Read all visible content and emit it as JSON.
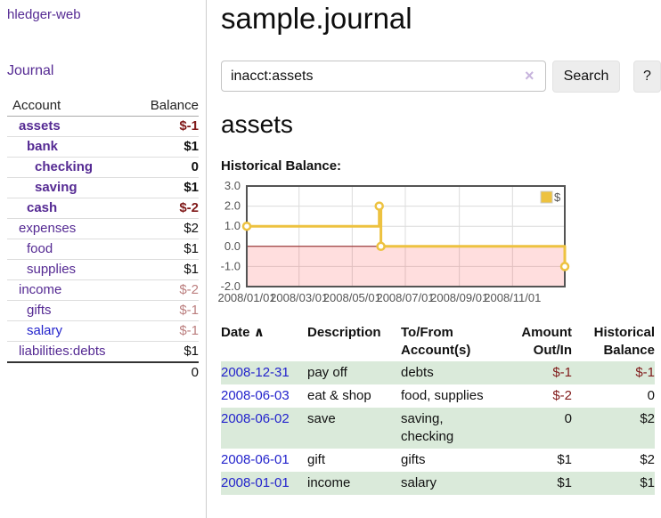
{
  "sidebar": {
    "brand": "hledger-web",
    "nav_journal": "Journal",
    "accounts_table": {
      "headers": {
        "account": "Account",
        "balance": "Balance"
      },
      "rows": [
        {
          "name": "assets",
          "indent": 1,
          "balance": "$-1",
          "bold": true,
          "neg": "strong"
        },
        {
          "name": "bank",
          "indent": 2,
          "balance": "$1",
          "bold": true
        },
        {
          "name": "checking",
          "indent": 3,
          "balance": "0",
          "bold": true
        },
        {
          "name": "saving",
          "indent": 3,
          "balance": "$1",
          "bold": true
        },
        {
          "name": "cash",
          "indent": 2,
          "balance": "$-2",
          "bold": true,
          "neg": "strong"
        },
        {
          "name": "expenses",
          "indent": 1,
          "balance": "$2"
        },
        {
          "name": "food",
          "indent": 2,
          "balance": "$1"
        },
        {
          "name": "supplies",
          "indent": 2,
          "balance": "$1"
        },
        {
          "name": "income",
          "indent": 1,
          "balance": "$-2",
          "neg": "faded"
        },
        {
          "name": "gifts",
          "indent": 2,
          "balance": "$-1",
          "neg": "faded"
        },
        {
          "name": "salary",
          "indent": 2,
          "balance": "$-1",
          "neg": "faded",
          "link": "blue"
        },
        {
          "name": "liabilities:debts",
          "indent": 1,
          "balance": "$1"
        }
      ],
      "total": "0"
    }
  },
  "header": {
    "title": "sample.journal"
  },
  "search": {
    "value": "inacct:assets",
    "clear_icon": "×",
    "button_label": "Search",
    "help_label": "?"
  },
  "account_page": {
    "heading": "assets",
    "chart_label": "Historical Balance:"
  },
  "chart_data": {
    "type": "line",
    "style": "step",
    "title": "Historical Balance",
    "series": [
      {
        "name": "$",
        "points": [
          [
            "2008-01-01",
            1
          ],
          [
            "2008-06-01",
            2
          ],
          [
            "2008-06-03",
            0
          ],
          [
            "2008-12-31",
            -1
          ]
        ]
      }
    ],
    "ylim": [
      -2,
      3
    ],
    "yticks": [
      3.0,
      2.0,
      1.0,
      0.0,
      -1.0,
      -2.0
    ],
    "xticks": [
      "2008/01/01",
      "2008/03/01",
      "2008/05/01",
      "2008/07/01",
      "2008/09/01",
      "2008/11/01"
    ],
    "x_range": [
      "2008-01-01",
      "2008-12-31"
    ],
    "grid": true,
    "legend_position": "top-right",
    "negative_region_shaded": true,
    "colors": {
      "line": "#edc240",
      "grid": "#dcdcdc",
      "border": "#545454",
      "zero_line": "#8b1a1a",
      "negative_region": "rgba(255,0,0,0.13)",
      "tick_text": "#545454"
    }
  },
  "transactions": {
    "headers": [
      "Date",
      "Description",
      "To/From Account(s)",
      "Amount Out/In",
      "Historical Balance"
    ],
    "sort_icon": "∧",
    "rows": [
      {
        "date": "2008-12-31",
        "description": "pay off",
        "accounts": "debts",
        "amount": "$-1",
        "balance": "$-1",
        "amount_neg": true,
        "balance_neg": true,
        "shaded": true
      },
      {
        "date": "2008-06-03",
        "description": "eat & shop",
        "accounts": "food, supplies",
        "amount": "$-2",
        "balance": "0",
        "amount_neg": true,
        "balance_neg": false,
        "shaded": false
      },
      {
        "date": "2008-06-02",
        "description": "save",
        "accounts": "saving, checking",
        "amount": "0",
        "balance": "$2",
        "amount_neg": false,
        "balance_neg": false,
        "shaded": true
      },
      {
        "date": "2008-06-01",
        "description": "gift",
        "accounts": "gifts",
        "amount": "$1",
        "balance": "$2",
        "amount_neg": false,
        "balance_neg": false,
        "shaded": false
      },
      {
        "date": "2008-01-01",
        "description": "income",
        "accounts": "salary",
        "amount": "$1",
        "balance": "$1",
        "amount_neg": false,
        "balance_neg": false,
        "shaded": true
      }
    ]
  },
  "colors": {
    "link_purple": "#552a93",
    "link_blue": "#2323cc",
    "negative_strong": "#801a1a",
    "negative_faded": "#bb7e7e",
    "row_highlight_green": "#daeada"
  }
}
